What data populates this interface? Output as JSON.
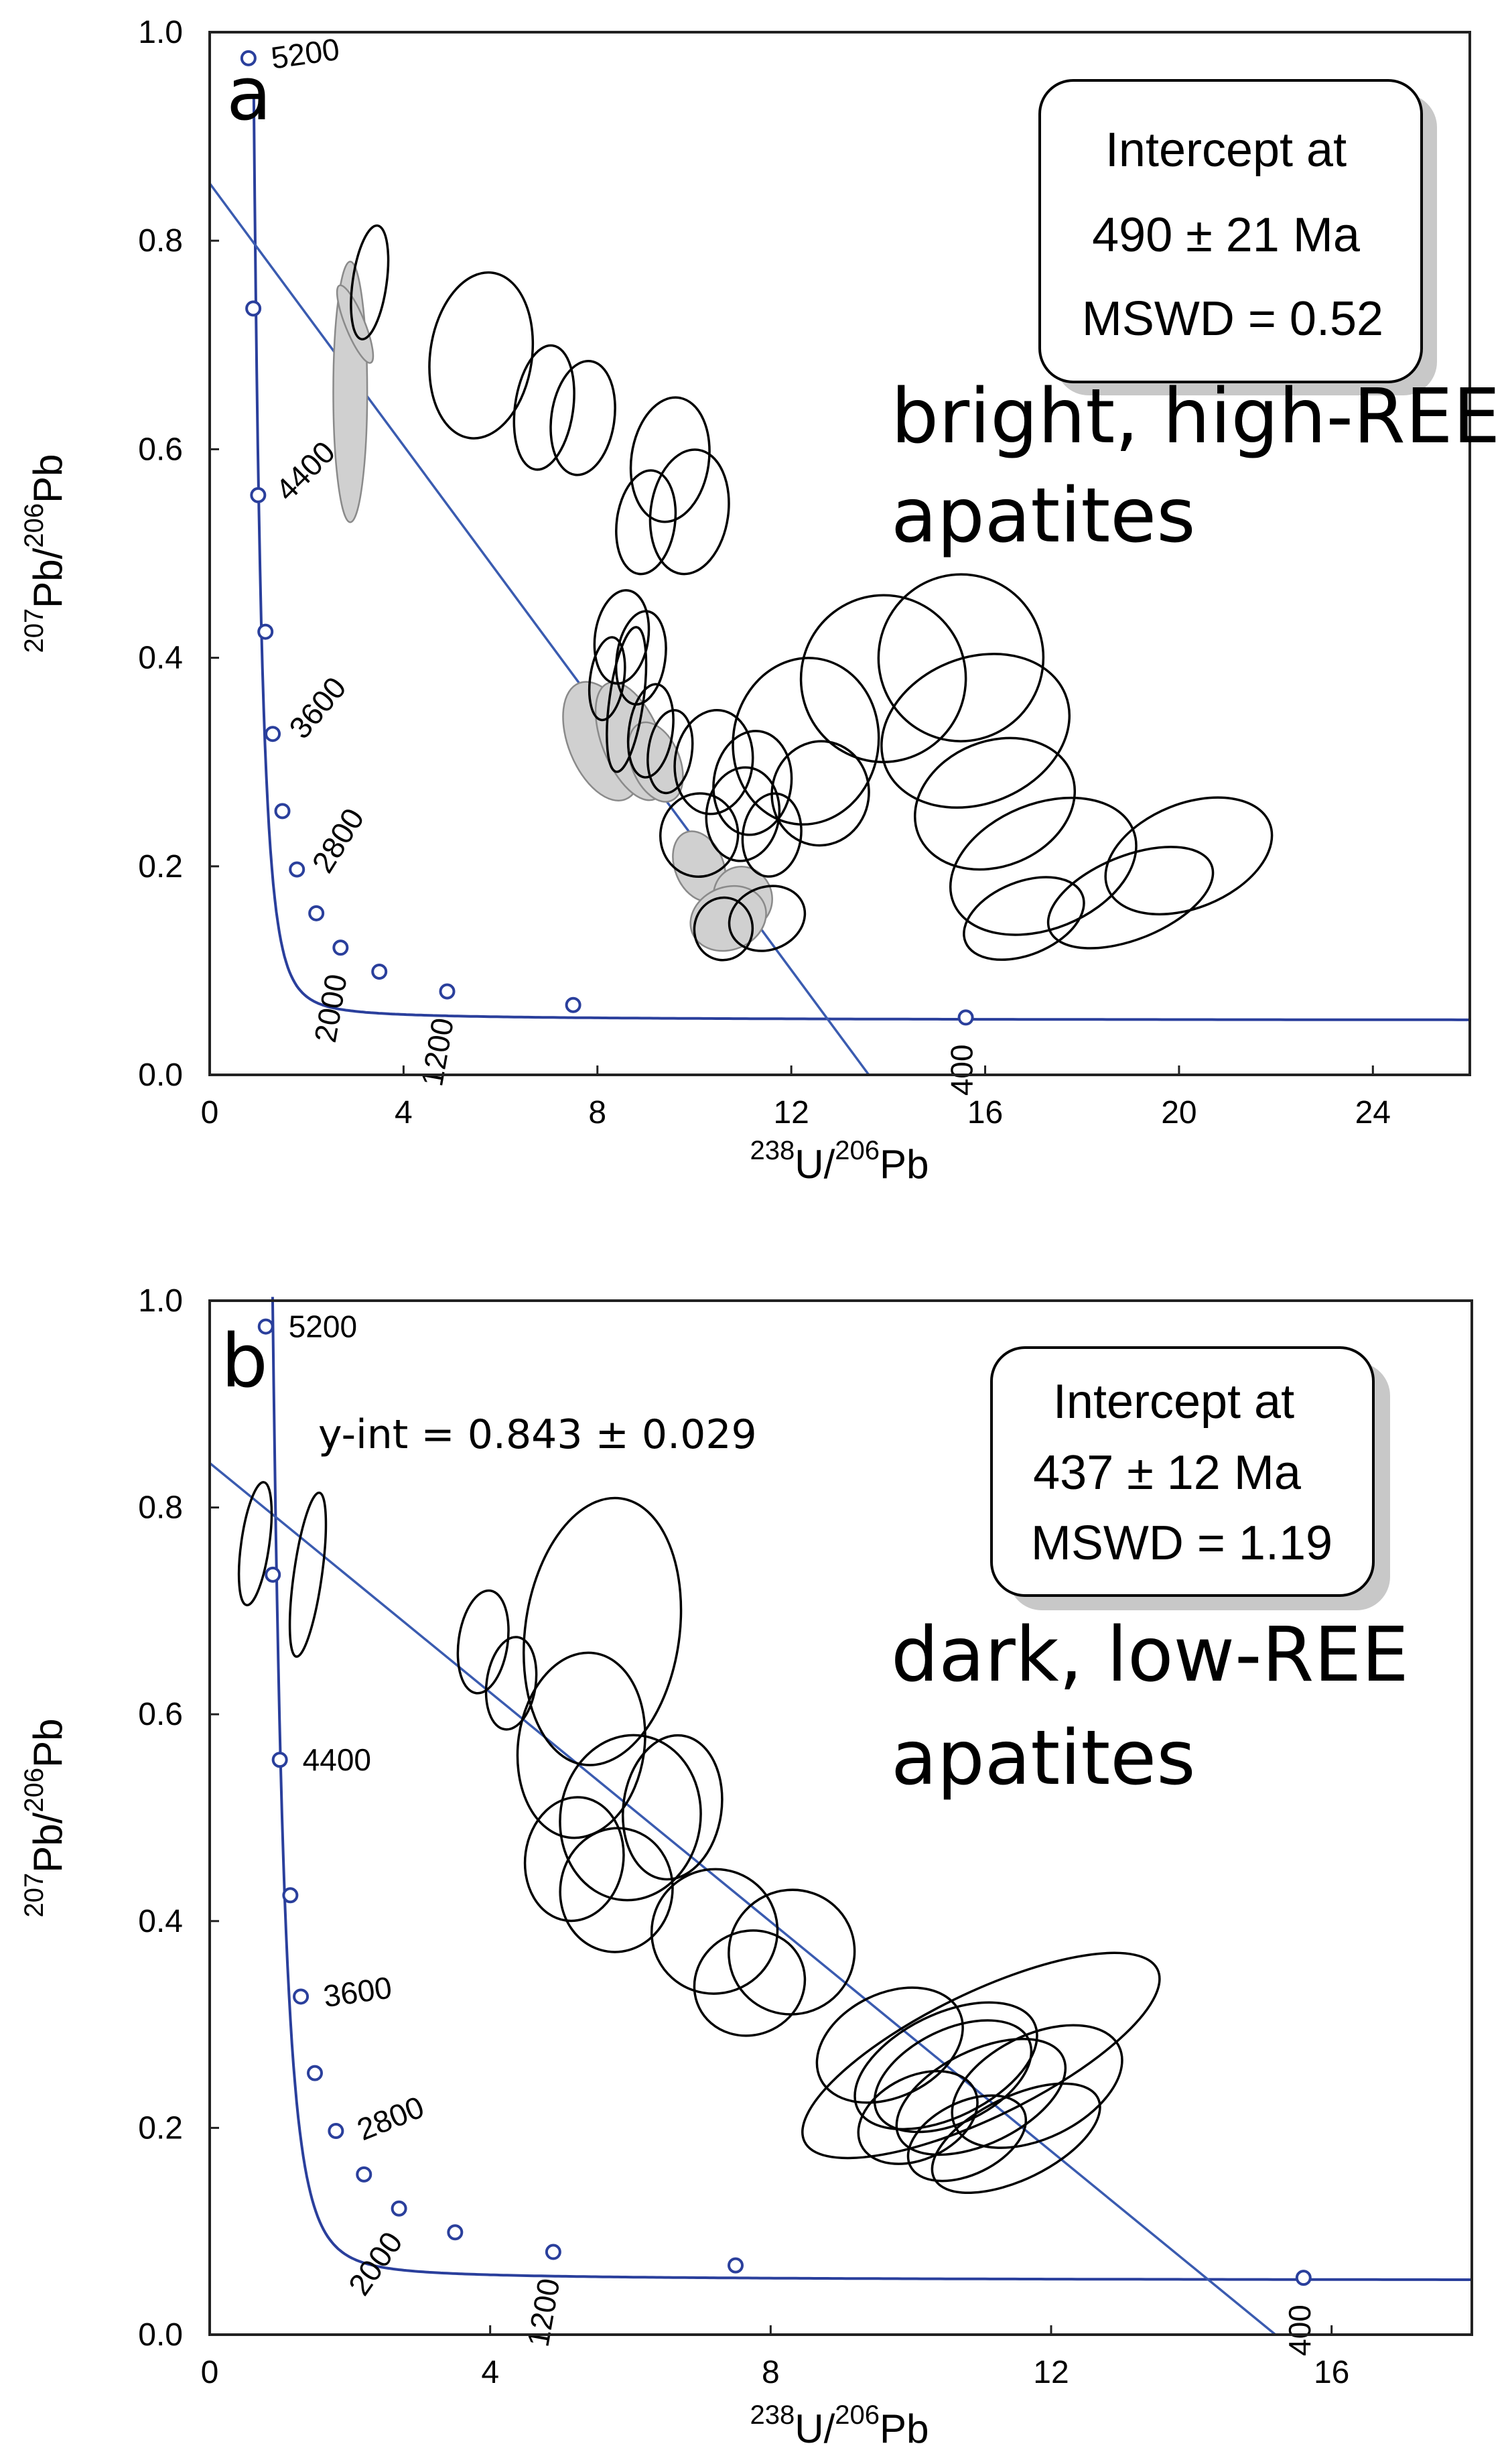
{
  "chart_data": [
    {
      "type": "scatter",
      "panel_label": "a",
      "title": "",
      "xlabel_parts": [
        "238",
        "U/",
        "206",
        "Pb"
      ],
      "ylabel_parts": [
        "207",
        "Pb/",
        "206",
        "Pb"
      ],
      "xlim": [
        0,
        26
      ],
      "ylim": [
        0.0,
        1.0
      ],
      "xticks": [
        0,
        4,
        8,
        12,
        16,
        20,
        24
      ],
      "yticks": [
        "0.0",
        "0.2",
        "0.4",
        "0.6",
        "0.8",
        "1.0"
      ],
      "concordia_points": [
        [
          0.8,
          0.975
        ],
        [
          0.9,
          0.735
        ],
        [
          1.0,
          0.556
        ],
        [
          1.15,
          0.425
        ],
        [
          1.3,
          0.327
        ],
        [
          1.5,
          0.253
        ],
        [
          1.8,
          0.197
        ],
        [
          2.2,
          0.155
        ],
        [
          2.7,
          0.122
        ],
        [
          3.5,
          0.099
        ],
        [
          4.9,
          0.08
        ],
        [
          7.5,
          0.067
        ],
        [
          15.6,
          0.055
        ]
      ],
      "age_labels": [
        {
          "text": "5200",
          "x": 0.8,
          "y": 0.975
        },
        {
          "text": "4400",
          "x": 1.0,
          "y": 0.556
        },
        {
          "text": "3600",
          "x": 1.3,
          "y": 0.327
        },
        {
          "text": "2800",
          "x": 1.8,
          "y": 0.197
        },
        {
          "text": "2000",
          "x": 2.7,
          "y": 0.122
        },
        {
          "text": "1200",
          "x": 4.9,
          "y": 0.08
        },
        {
          "text": "400",
          "x": 15.6,
          "y": 0.055
        }
      ],
      "regression": {
        "y_intercept": 0.855,
        "x_intercept": 13.6
      },
      "ellipses_black": [
        [
          3.3,
          0.76,
          0.35,
          0.055
        ],
        [
          5.6,
          0.69,
          1.05,
          0.08
        ],
        [
          6.9,
          0.64,
          0.6,
          0.06
        ],
        [
          7.7,
          0.63,
          0.65,
          0.055
        ],
        [
          9.5,
          0.59,
          0.8,
          0.06
        ],
        [
          9.9,
          0.54,
          0.8,
          0.06
        ],
        [
          9.0,
          0.53,
          0.6,
          0.05
        ],
        [
          8.5,
          0.42,
          0.55,
          0.045
        ],
        [
          8.9,
          0.4,
          0.5,
          0.045
        ],
        [
          8.6,
          0.36,
          0.35,
          0.07
        ],
        [
          8.2,
          0.38,
          0.35,
          0.04
        ],
        [
          9.1,
          0.33,
          0.45,
          0.045
        ],
        [
          9.5,
          0.31,
          0.45,
          0.04
        ],
        [
          10.4,
          0.3,
          0.8,
          0.05
        ],
        [
          11.2,
          0.28,
          0.8,
          0.05
        ],
        [
          11.0,
          0.25,
          0.75,
          0.045
        ],
        [
          11.6,
          0.23,
          0.6,
          0.04
        ],
        [
          12.3,
          0.32,
          1.5,
          0.08
        ],
        [
          12.6,
          0.27,
          1.0,
          0.05
        ],
        [
          13.9,
          0.38,
          1.7,
          0.08
        ],
        [
          15.5,
          0.4,
          1.7,
          0.08
        ],
        [
          15.8,
          0.33,
          2.0,
          0.07
        ],
        [
          16.2,
          0.26,
          1.7,
          0.06
        ],
        [
          17.2,
          0.2,
          2.0,
          0.06
        ],
        [
          20.2,
          0.21,
          1.8,
          0.05
        ],
        [
          19.0,
          0.17,
          1.8,
          0.04
        ],
        [
          16.8,
          0.15,
          1.3,
          0.035
        ],
        [
          11.5,
          0.15,
          0.8,
          0.03
        ],
        [
          10.6,
          0.14,
          0.6,
          0.03
        ],
        [
          10.1,
          0.23,
          0.8,
          0.04
        ]
      ],
      "ellipses_gray": [
        [
          2.9,
          0.655,
          0.35,
          0.125
        ],
        [
          3.0,
          0.72,
          0.2,
          0.04
        ],
        [
          8.1,
          0.32,
          0.7,
          0.06
        ],
        [
          8.7,
          0.32,
          0.6,
          0.06
        ],
        [
          9.2,
          0.3,
          0.5,
          0.04
        ],
        [
          10.1,
          0.2,
          0.5,
          0.035
        ],
        [
          11.0,
          0.17,
          0.6,
          0.03
        ],
        [
          10.7,
          0.15,
          0.8,
          0.03
        ]
      ],
      "annotation_box": {
        "lines": [
          "Intercept  at",
          "490 ± 21  Ma",
          "MSWD = 0.52"
        ]
      },
      "sample_label": [
        "bright, high-REE",
        "apatites"
      ]
    },
    {
      "type": "scatter",
      "panel_label": "b",
      "title": "",
      "xlabel_parts": [
        "238",
        "U/",
        "206",
        "Pb"
      ],
      "ylabel_parts": [
        "207",
        "Pb/",
        "206",
        "Pb"
      ],
      "xlim": [
        0,
        18
      ],
      "ylim": [
        0.0,
        1.0
      ],
      "xticks": [
        0,
        4,
        8,
        12,
        16
      ],
      "yticks": [
        "0.0",
        "0.2",
        "0.4",
        "0.6",
        "0.8",
        "1.0"
      ],
      "concordia_points": [
        [
          0.8,
          0.975
        ],
        [
          0.9,
          0.735
        ],
        [
          1.0,
          0.556
        ],
        [
          1.15,
          0.425
        ],
        [
          1.3,
          0.327
        ],
        [
          1.5,
          0.253
        ],
        [
          1.8,
          0.197
        ],
        [
          2.2,
          0.155
        ],
        [
          2.7,
          0.122
        ],
        [
          3.5,
          0.099
        ],
        [
          4.9,
          0.08
        ],
        [
          7.5,
          0.067
        ],
        [
          15.6,
          0.055
        ]
      ],
      "age_labels": [
        {
          "text": "5200",
          "x": 0.8,
          "y": 0.975
        },
        {
          "text": "4400",
          "x": 1.0,
          "y": 0.556
        },
        {
          "text": "3600",
          "x": 1.3,
          "y": 0.327
        },
        {
          "text": "2800",
          "x": 1.8,
          "y": 0.197
        },
        {
          "text": "2000",
          "x": 2.7,
          "y": 0.122
        },
        {
          "text": "1200",
          "x": 4.9,
          "y": 0.08
        },
        {
          "text": "400",
          "x": 15.6,
          "y": 0.055
        }
      ],
      "regression": {
        "y_intercept": 0.843,
        "x_intercept": 15.2
      },
      "y_int_annotation": "y-int = 0.843 ± 0.029",
      "ellipses_black": [
        [
          0.65,
          0.765,
          0.2,
          0.06
        ],
        [
          1.4,
          0.735,
          0.2,
          0.08
        ],
        [
          3.9,
          0.67,
          0.35,
          0.05
        ],
        [
          4.3,
          0.63,
          0.35,
          0.045
        ],
        [
          5.6,
          0.68,
          1.1,
          0.13
        ],
        [
          5.3,
          0.57,
          0.9,
          0.09
        ],
        [
          6.0,
          0.5,
          1.0,
          0.08
        ],
        [
          5.2,
          0.46,
          0.7,
          0.06
        ],
        [
          6.6,
          0.51,
          0.7,
          0.07
        ],
        [
          5.8,
          0.43,
          0.8,
          0.06
        ],
        [
          7.2,
          0.39,
          0.9,
          0.06
        ],
        [
          7.7,
          0.34,
          0.8,
          0.05
        ],
        [
          8.3,
          0.37,
          0.9,
          0.06
        ],
        [
          9.7,
          0.28,
          1.1,
          0.05
        ],
        [
          10.5,
          0.26,
          1.4,
          0.05
        ],
        [
          11.0,
          0.23,
          1.3,
          0.045
        ],
        [
          10.1,
          0.21,
          0.9,
          0.04
        ],
        [
          11.8,
          0.24,
          1.3,
          0.05
        ],
        [
          11.0,
          0.27,
          2.8,
          0.06
        ],
        [
          11.5,
          0.19,
          1.3,
          0.04
        ],
        [
          10.8,
          0.19,
          0.9,
          0.035
        ],
        [
          10.6,
          0.25,
          1.2,
          0.045
        ]
      ],
      "annotation_box": {
        "lines": [
          "Intercept  at",
          "437 ± 12  Ma",
          "MSWD = 1.19"
        ]
      },
      "sample_label": [
        "dark, low-REE",
        "apatites"
      ]
    }
  ]
}
